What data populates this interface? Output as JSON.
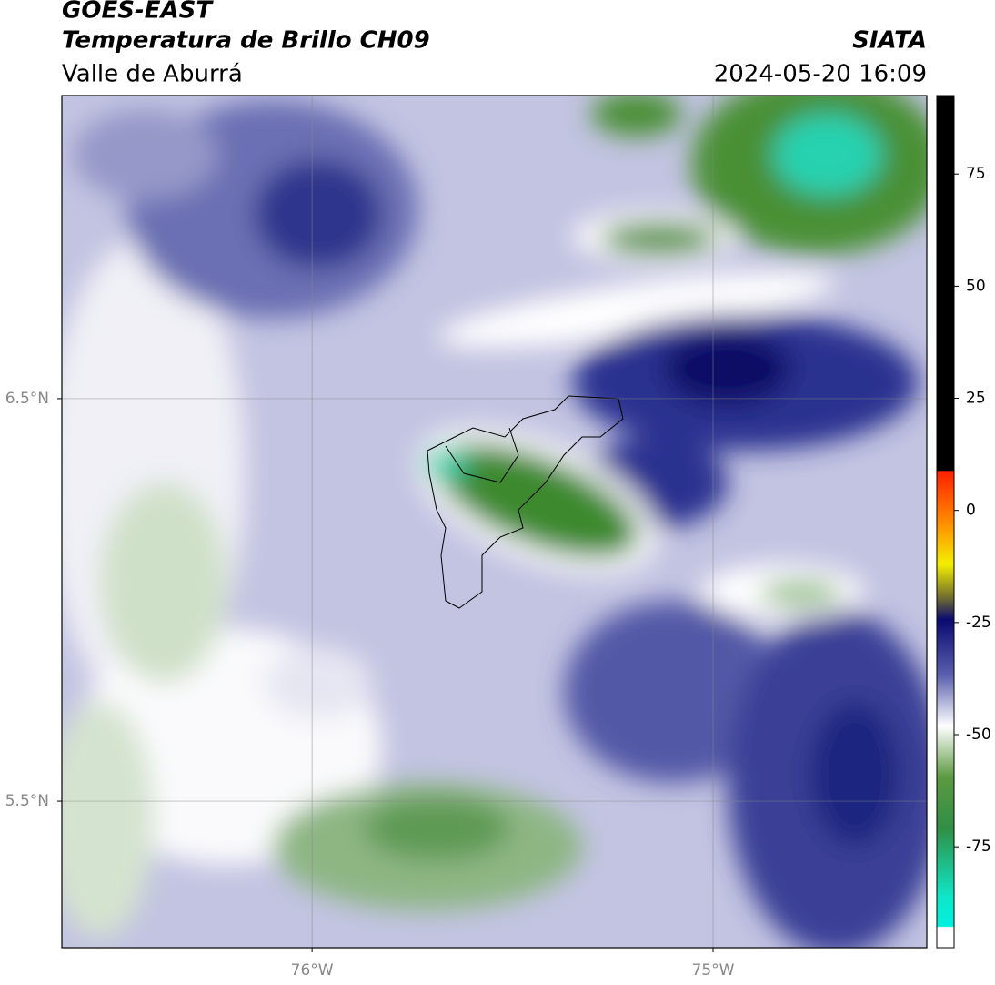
{
  "header": {
    "title": "GOES-EAST",
    "subtitle": "Temperatura de Brillo CH09",
    "region": "Valle de Aburrá",
    "source": "SIATA",
    "datetime": "2024-05-20 16:09"
  },
  "chart_data": {
    "type": "map",
    "xlim": [
      -76.624,
      -74.467
    ],
    "ylim": [
      5.136,
      7.253
    ],
    "xticks": [
      {
        "value": -76,
        "label": "76°W"
      },
      {
        "value": -75,
        "label": "75°W"
      }
    ],
    "yticks": [
      {
        "value": 6.5,
        "label": "6.5°N"
      },
      {
        "value": 5.5,
        "label": "5.5°N"
      }
    ],
    "grid": true,
    "colorbar": {
      "lim": [
        -97.5,
        92.5
      ],
      "ticks": [
        75,
        50,
        25,
        0,
        -25,
        -50,
        -75
      ]
    }
  }
}
